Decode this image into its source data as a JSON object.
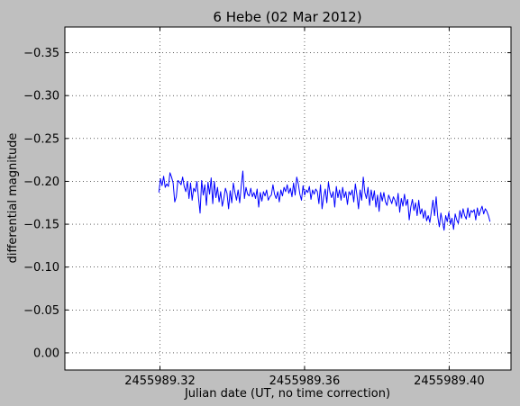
{
  "chart_data": {
    "type": "line",
    "title": "6 Hebe (02 Mar 2012)",
    "xlabel": "Julian date (UT, no time correction)",
    "ylabel": "differential magnitude",
    "xlim": [
      2455989.2937,
      2455989.4171
    ],
    "ylim": [
      0.02,
      -0.38
    ],
    "y_axis_inverted": true,
    "grid": true,
    "grid_style": "dotted",
    "x_ticks": [
      2455989.32,
      2455989.36,
      2455989.4
    ],
    "x_tick_labels": [
      "2455989.32",
      "2455989.36",
      "2455989.40"
    ],
    "y_ticks": [
      -0.35,
      -0.3,
      -0.25,
      -0.2,
      -0.15,
      -0.1,
      -0.05,
      0.0
    ],
    "y_tick_labels": [
      "−0.35",
      "−0.30",
      "−0.25",
      "−0.20",
      "−0.15",
      "−0.10",
      "−0.05",
      "0.00"
    ],
    "line_color": "#0000ff",
    "x_start": 2455989.3197,
    "x_end": 2455989.4113,
    "series": [
      {
        "values": [
          -0.187,
          -0.203,
          -0.195,
          -0.206,
          -0.193,
          -0.197,
          -0.194,
          -0.21,
          -0.205,
          -0.198,
          -0.176,
          -0.182,
          -0.201,
          -0.199,
          -0.196,
          -0.205,
          -0.194,
          -0.188,
          -0.2,
          -0.18,
          -0.198,
          -0.178,
          -0.192,
          -0.188,
          -0.2,
          -0.181,
          -0.163,
          -0.201,
          -0.184,
          -0.196,
          -0.172,
          -0.199,
          -0.185,
          -0.204,
          -0.174,
          -0.2,
          -0.181,
          -0.193,
          -0.176,
          -0.188,
          -0.171,
          -0.18,
          -0.192,
          -0.186,
          -0.168,
          -0.189,
          -0.175,
          -0.198,
          -0.187,
          -0.178,
          -0.19,
          -0.175,
          -0.195,
          -0.212,
          -0.18,
          -0.193,
          -0.185,
          -0.183,
          -0.192,
          -0.182,
          -0.187,
          -0.18,
          -0.191,
          -0.17,
          -0.187,
          -0.177,
          -0.188,
          -0.183,
          -0.19,
          -0.178,
          -0.182,
          -0.184,
          -0.196,
          -0.185,
          -0.18,
          -0.188,
          -0.176,
          -0.19,
          -0.183,
          -0.193,
          -0.188,
          -0.196,
          -0.186,
          -0.192,
          -0.182,
          -0.198,
          -0.184,
          -0.205,
          -0.197,
          -0.185,
          -0.178,
          -0.195,
          -0.184,
          -0.19,
          -0.187,
          -0.194,
          -0.179,
          -0.19,
          -0.185,
          -0.191,
          -0.188,
          -0.174,
          -0.196,
          -0.168,
          -0.182,
          -0.191,
          -0.175,
          -0.199,
          -0.187,
          -0.181,
          -0.188,
          -0.17,
          -0.194,
          -0.181,
          -0.19,
          -0.178,
          -0.193,
          -0.181,
          -0.188,
          -0.173,
          -0.188,
          -0.184,
          -0.19,
          -0.176,
          -0.197,
          -0.184,
          -0.168,
          -0.19,
          -0.178,
          -0.205,
          -0.187,
          -0.18,
          -0.193,
          -0.172,
          -0.19,
          -0.178,
          -0.189,
          -0.17,
          -0.184,
          -0.165,
          -0.187,
          -0.177,
          -0.187,
          -0.176,
          -0.172,
          -0.184,
          -0.179,
          -0.174,
          -0.182,
          -0.178,
          -0.171,
          -0.186,
          -0.164,
          -0.18,
          -0.171,
          -0.185,
          -0.172,
          -0.179,
          -0.155,
          -0.17,
          -0.179,
          -0.166,
          -0.175,
          -0.16,
          -0.178,
          -0.162,
          -0.168,
          -0.157,
          -0.166,
          -0.154,
          -0.16,
          -0.152,
          -0.165,
          -0.178,
          -0.16,
          -0.182,
          -0.159,
          -0.147,
          -0.163,
          -0.153,
          -0.143,
          -0.16,
          -0.153,
          -0.164,
          -0.15,
          -0.157,
          -0.144,
          -0.162,
          -0.155,
          -0.151,
          -0.166,
          -0.157,
          -0.168,
          -0.16,
          -0.156,
          -0.169,
          -0.158,
          -0.166,
          -0.164,
          -0.167,
          -0.155,
          -0.169,
          -0.16,
          -0.166,
          -0.171,
          -0.162,
          -0.168,
          -0.165,
          -0.16,
          -0.153
        ]
      }
    ]
  }
}
